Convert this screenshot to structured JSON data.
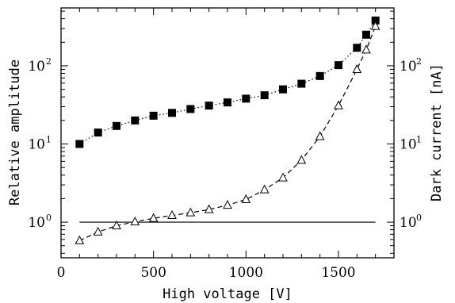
{
  "chart_data": {
    "type": "line",
    "xlabel": "High voltage [V]",
    "ylabel_left": "Relative amplitude",
    "ylabel_right": "Dark current [nA]",
    "xlim": [
      0,
      1800
    ],
    "ylim": [
      0.35,
      550
    ],
    "y_scale": "log",
    "x_ticks": [
      0,
      500,
      1000,
      1500
    ],
    "x_tick_labels": [
      "0",
      "500",
      "1000",
      "1500"
    ],
    "y_ticks": [
      1,
      10,
      100
    ],
    "y_tick_labels": [
      {
        "base": "10",
        "exp": "0"
      },
      {
        "base": "10",
        "exp": "1"
      },
      {
        "base": "10",
        "exp": "2"
      }
    ],
    "grid": false,
    "legend": "none",
    "series": [
      {
        "marker": "filled-square",
        "line_style": "dotted",
        "color": "#000000",
        "x": [
          100,
          200,
          300,
          400,
          500,
          600,
          700,
          800,
          900,
          1000,
          1100,
          1200,
          1300,
          1400,
          1500,
          1600,
          1650,
          1700
        ],
        "y": [
          10,
          14,
          17,
          20,
          23,
          25,
          28,
          31,
          34,
          38,
          42,
          50,
          59,
          74,
          102,
          170,
          250,
          380
        ]
      },
      {
        "marker": "open-triangle",
        "line_style": "dashed",
        "color": "#000000",
        "x": [
          100,
          200,
          300,
          400,
          500,
          600,
          700,
          800,
          900,
          1000,
          1100,
          1200,
          1300,
          1400,
          1500,
          1600,
          1650,
          1700
        ],
        "y": [
          0.58,
          0.75,
          0.9,
          1.01,
          1.12,
          1.22,
          1.32,
          1.45,
          1.65,
          1.95,
          2.6,
          3.7,
          6.2,
          12.5,
          31,
          90,
          160,
          320
        ]
      }
    ],
    "reference_line": {
      "y": 1,
      "x_from": 100,
      "x_to": 1700,
      "line_style": "solid"
    }
  }
}
